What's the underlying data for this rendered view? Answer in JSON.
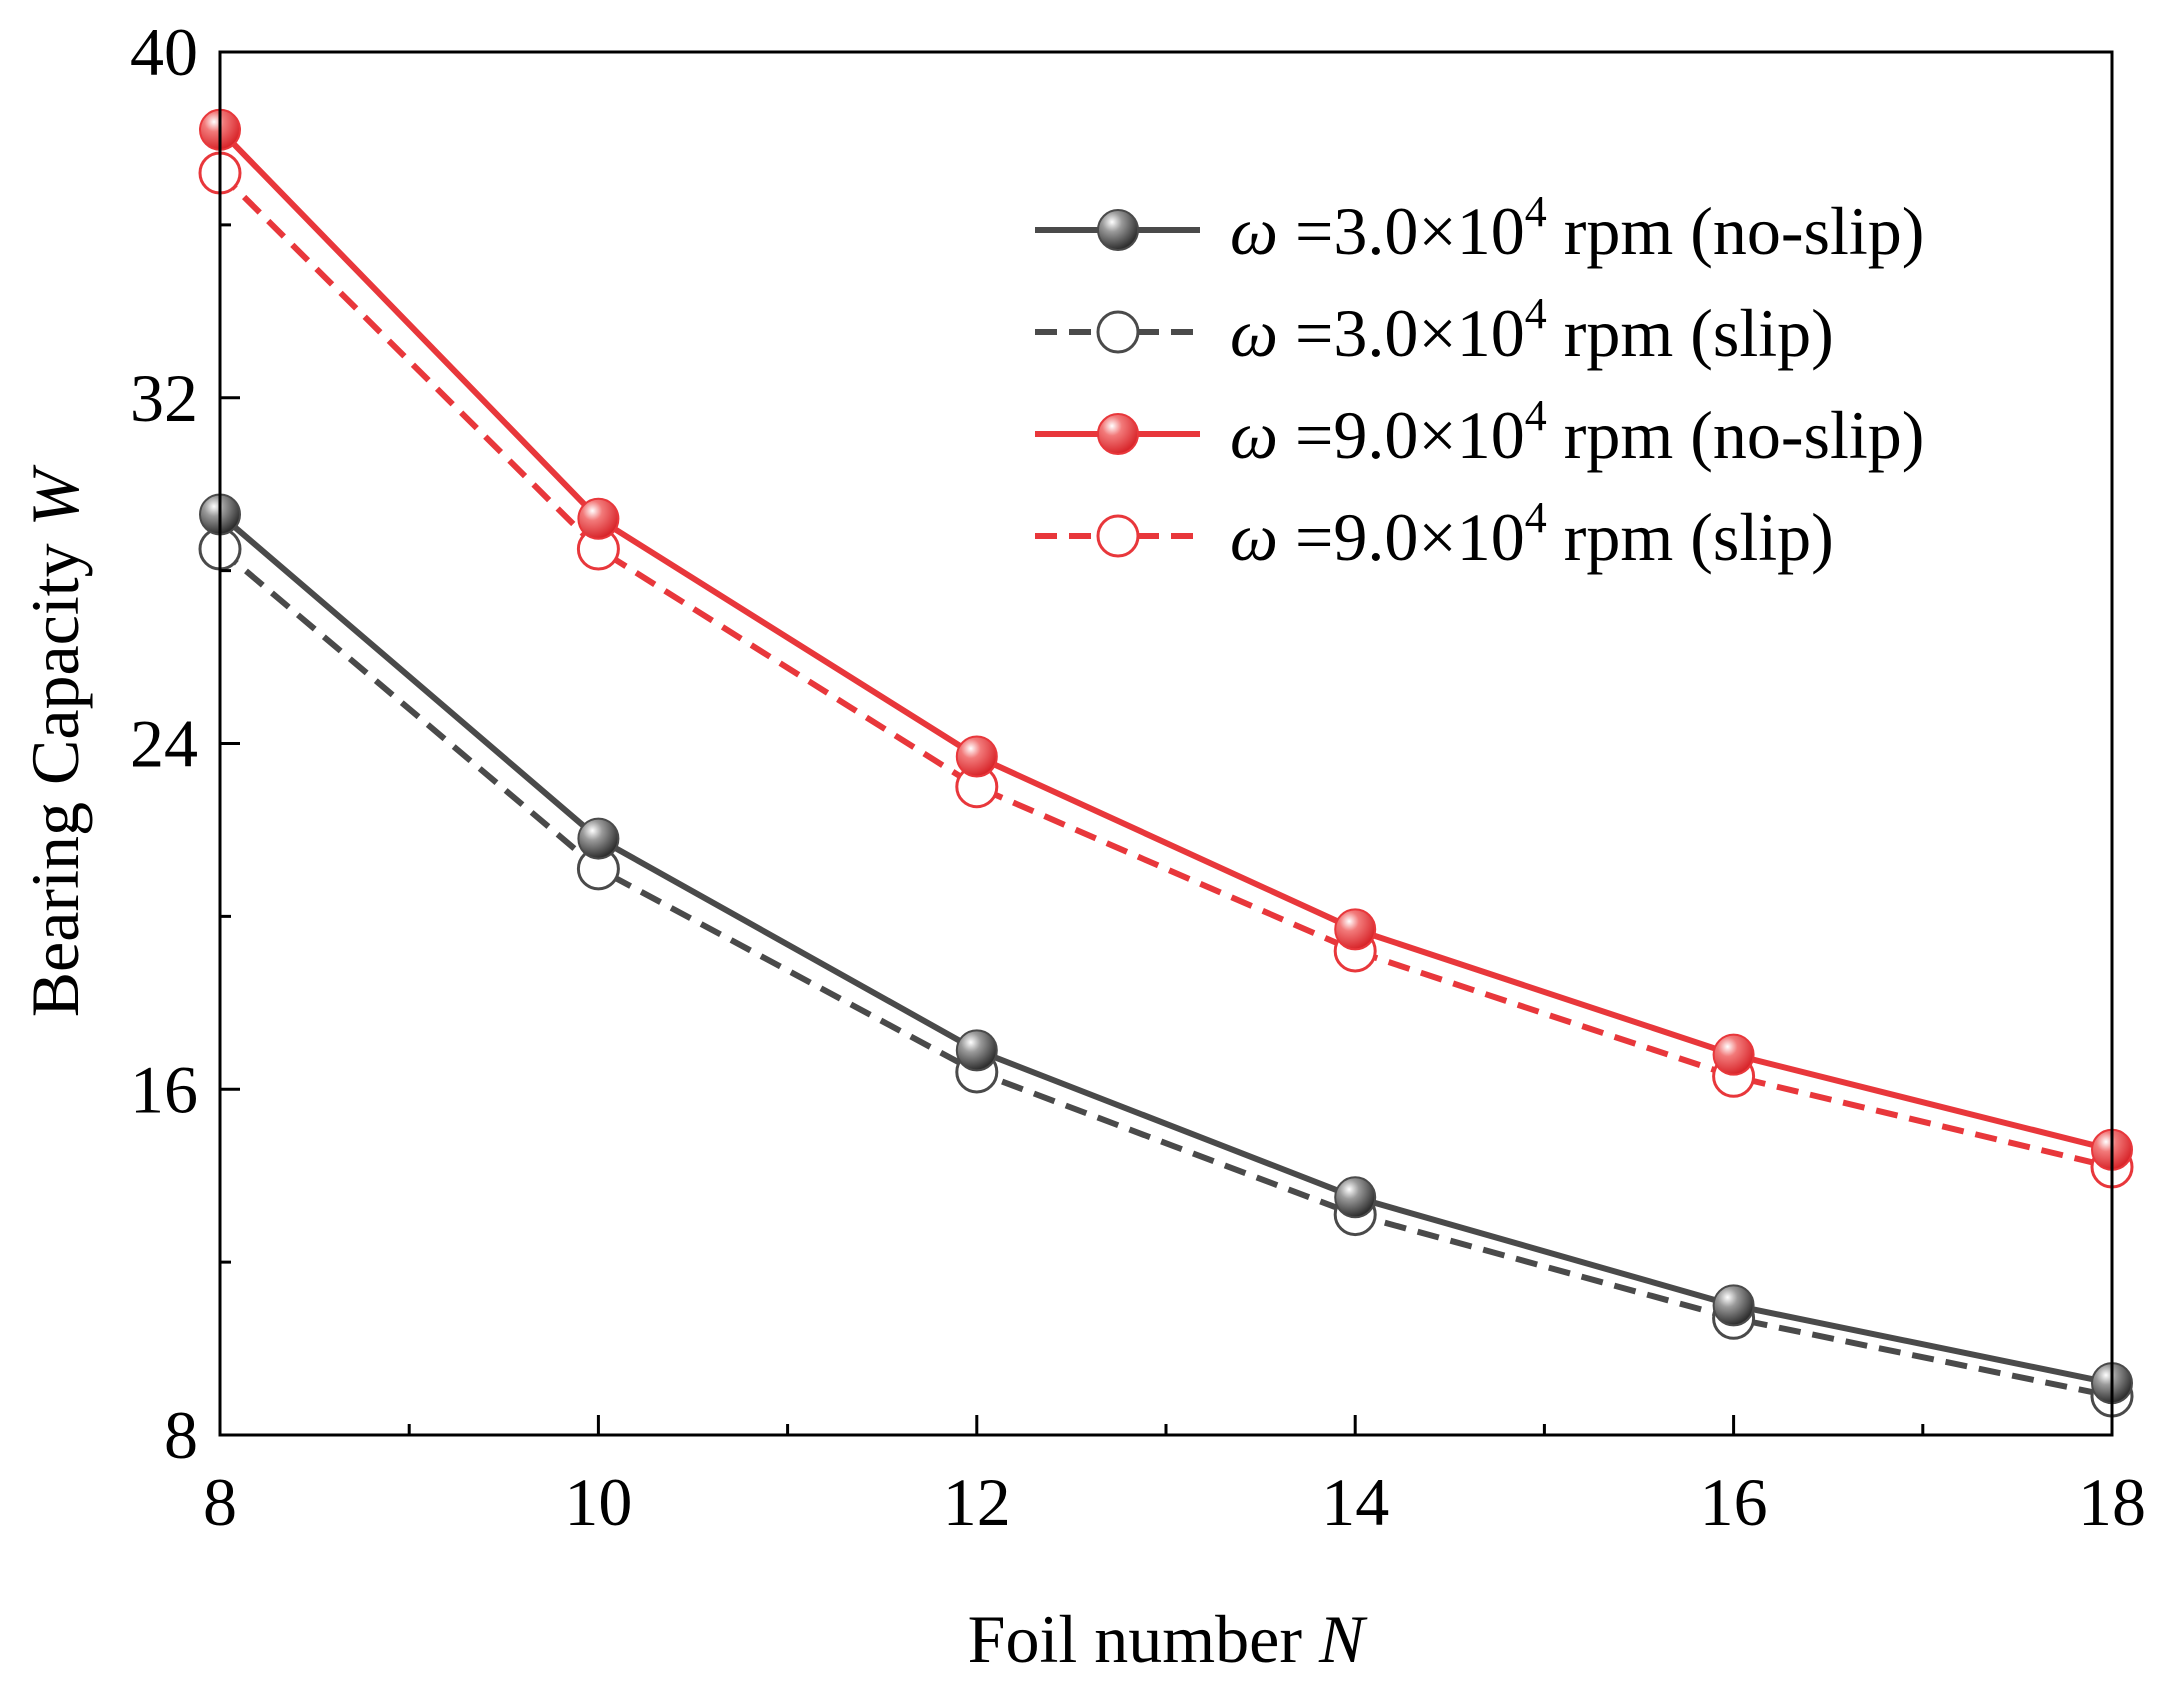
{
  "chart_data": {
    "type": "line",
    "title": "",
    "xlabel": {
      "text": "Foil number ",
      "italic": "N"
    },
    "ylabel": {
      "text": "Bearing Capacity ",
      "italic": "W"
    },
    "xlim": [
      8,
      18
    ],
    "ylim": [
      8,
      40
    ],
    "x_ticks": [
      "8",
      "10",
      "12",
      "14",
      "16",
      "18"
    ],
    "y_ticks": [
      "8",
      "16",
      "24",
      "32",
      "40"
    ],
    "grid": false,
    "legend_position": "top-right",
    "x": [
      8,
      10,
      12,
      14,
      16,
      18
    ],
    "series": [
      {
        "name": "ω=3.0×10⁴ rpm (no-slip)",
        "legend": {
          "symbol": "ω",
          "text": "=3.0×10",
          "sup": "4",
          "tail": " rpm (no-slip)"
        },
        "values": [
          29.3,
          21.8,
          16.9,
          13.5,
          11.0,
          9.2
        ],
        "color": "#4a4a4a",
        "style": "solid",
        "marker": "filled"
      },
      {
        "name": "ω=3.0×10⁴ rpm (slip)",
        "legend": {
          "symbol": "ω",
          "text": "=3.0×10",
          "sup": "4",
          "tail": " rpm (slip)"
        },
        "values": [
          28.5,
          21.1,
          16.4,
          13.1,
          10.7,
          8.9
        ],
        "color": "#4a4a4a",
        "style": "dashed",
        "marker": "open"
      },
      {
        "name": "ω=9.0×10⁴ rpm (no-slip)",
        "legend": {
          "symbol": "ω",
          "text": "=9.0×10",
          "sup": "4",
          "tail": " rpm (no-slip)"
        },
        "values": [
          38.2,
          29.2,
          23.7,
          19.7,
          16.8,
          14.6
        ],
        "color": "#e8373b",
        "style": "solid",
        "marker": "filled"
      },
      {
        "name": "ω=9.0×10⁴ rpm (slip)",
        "legend": {
          "symbol": "ω",
          "text": "=9.0×10",
          "sup": "4",
          "tail": " rpm (slip)"
        },
        "values": [
          37.2,
          28.5,
          23.0,
          19.2,
          16.3,
          14.2
        ],
        "color": "#e8373b",
        "style": "dashed",
        "marker": "open"
      }
    ]
  }
}
